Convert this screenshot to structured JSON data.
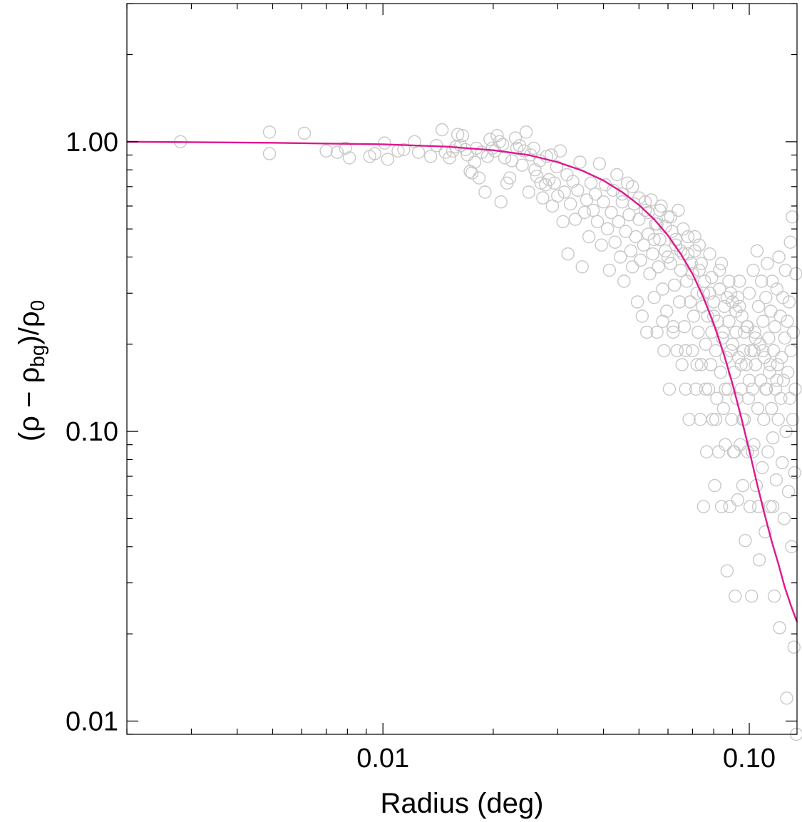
{
  "chart_data": {
    "type": "scatter",
    "xlabel": "Radius (deg)",
    "ylabel": {
      "rho1": "ρ",
      "minus": " − ",
      "rho2": "ρ",
      "sub_bg": "bg",
      "slash": "/",
      "rho3": "ρ",
      "sub_0": "0"
    },
    "x_scale": "log",
    "y_scale": "log",
    "xlim": [
      0.002,
      0.135
    ],
    "ylim": [
      0.009,
      3.0
    ],
    "x_major_ticks": [
      {
        "value": 0.01,
        "label": "0.01"
      },
      {
        "value": 0.1,
        "label": "0.10"
      }
    ],
    "y_major_ticks": [
      {
        "value": 0.01,
        "label": "0.01"
      },
      {
        "value": 0.1,
        "label": "0.10"
      },
      {
        "value": 1.0,
        "label": "1.00"
      }
    ],
    "grid": false,
    "legend": "none",
    "colors": {
      "points": "#c8c8c8",
      "model": "#e0168f",
      "axes": "#000000"
    },
    "model_curve": {
      "type": "line",
      "form": "King profile (1 + (r/rc)^2)^-1 with rc ≈ 0.032 deg, scaled",
      "x": [
        0.002,
        0.005,
        0.01,
        0.015,
        0.02,
        0.025,
        0.03,
        0.035,
        0.04,
        0.045,
        0.05,
        0.055,
        0.06,
        0.065,
        0.07,
        0.075,
        0.08,
        0.085,
        0.09,
        0.095,
        0.1,
        0.105,
        0.11,
        0.115,
        0.12,
        0.125,
        0.13,
        0.135
      ],
      "y": [
        1.0,
        0.992,
        0.98,
        0.962,
        0.935,
        0.9,
        0.85,
        0.795,
        0.735,
        0.67,
        0.605,
        0.54,
        0.475,
        0.41,
        0.35,
        0.29,
        0.235,
        0.187,
        0.146,
        0.112,
        0.086,
        0.066,
        0.052,
        0.042,
        0.035,
        0.029,
        0.025,
        0.022
      ]
    },
    "points": [
      [
        0.0028,
        1.0
      ],
      [
        0.0049,
        1.08
      ],
      [
        0.0049,
        0.91
      ],
      [
        0.0061,
        1.07
      ],
      [
        0.007,
        0.93
      ],
      [
        0.0075,
        0.92
      ],
      [
        0.0079,
        0.95
      ],
      [
        0.0081,
        0.88
      ],
      [
        0.0092,
        0.89
      ],
      [
        0.0095,
        0.91
      ],
      [
        0.0101,
        0.99
      ],
      [
        0.0103,
        0.87
      ],
      [
        0.011,
        0.93
      ],
      [
        0.0114,
        0.94
      ],
      [
        0.0122,
        1.0
      ],
      [
        0.0125,
        0.92
      ],
      [
        0.0135,
        0.89
      ],
      [
        0.014,
        0.97
      ],
      [
        0.0145,
        1.1
      ],
      [
        0.0148,
        0.92
      ],
      [
        0.0152,
        0.88
      ],
      [
        0.0155,
        0.93
      ],
      [
        0.0158,
        0.96
      ],
      [
        0.016,
        1.06
      ],
      [
        0.0163,
        0.97
      ],
      [
        0.0165,
        1.05
      ],
      [
        0.0168,
        0.94
      ],
      [
        0.017,
        0.9
      ],
      [
        0.0173,
        0.79
      ],
      [
        0.0175,
        0.78
      ],
      [
        0.0178,
        0.85
      ],
      [
        0.018,
        0.95
      ],
      [
        0.0183,
        0.75
      ],
      [
        0.0186,
        0.92
      ],
      [
        0.019,
        0.67
      ],
      [
        0.0193,
        0.89
      ],
      [
        0.0196,
        1.02
      ],
      [
        0.0199,
        0.95
      ],
      [
        0.0202,
        0.93
      ],
      [
        0.0205,
        1.05
      ],
      [
        0.0208,
        1.0
      ],
      [
        0.021,
        0.62
      ],
      [
        0.0212,
        0.98
      ],
      [
        0.0215,
        0.88
      ],
      [
        0.0218,
        0.72
      ],
      [
        0.0222,
        0.75
      ],
      [
        0.0225,
        0.86
      ],
      [
        0.023,
        1.03
      ],
      [
        0.0232,
        0.95
      ],
      [
        0.0236,
        0.97
      ],
      [
        0.024,
        0.83
      ],
      [
        0.0243,
        0.93
      ],
      [
        0.0246,
        1.08
      ],
      [
        0.025,
        0.67
      ],
      [
        0.0253,
        0.9
      ],
      [
        0.0258,
        0.95
      ],
      [
        0.026,
        0.8
      ],
      [
        0.0263,
        0.76
      ],
      [
        0.0268,
        0.86
      ],
      [
        0.027,
        0.72
      ],
      [
        0.0273,
        0.64
      ],
      [
        0.0278,
        0.71
      ],
      [
        0.028,
        0.89
      ],
      [
        0.0284,
        0.74
      ],
      [
        0.0288,
        0.9
      ],
      [
        0.029,
        0.6
      ],
      [
        0.0294,
        0.72
      ],
      [
        0.0298,
        0.82
      ],
      [
        0.03,
        0.65
      ],
      [
        0.0305,
        0.93
      ],
      [
        0.031,
        0.53
      ],
      [
        0.0313,
        0.67
      ],
      [
        0.0318,
        0.77
      ],
      [
        0.032,
        0.41
      ],
      [
        0.0325,
        0.61
      ],
      [
        0.033,
        0.73
      ],
      [
        0.0335,
        0.54
      ],
      [
        0.034,
        0.68
      ],
      [
        0.0345,
        0.85
      ],
      [
        0.035,
        0.37
      ],
      [
        0.0355,
        0.57
      ],
      [
        0.036,
        0.63
      ],
      [
        0.0365,
        0.47
      ],
      [
        0.037,
        0.72
      ],
      [
        0.0375,
        0.58
      ],
      [
        0.038,
        0.66
      ],
      [
        0.0385,
        0.53
      ],
      [
        0.039,
        0.84
      ],
      [
        0.0395,
        0.44
      ],
      [
        0.04,
        0.62
      ],
      [
        0.0405,
        0.71
      ],
      [
        0.041,
        0.5
      ],
      [
        0.0415,
        0.36
      ],
      [
        0.042,
        0.57
      ],
      [
        0.0425,
        0.68
      ],
      [
        0.043,
        0.45
      ],
      [
        0.0435,
        0.77
      ],
      [
        0.044,
        0.53
      ],
      [
        0.0445,
        0.4
      ],
      [
        0.045,
        0.62
      ],
      [
        0.0455,
        0.33
      ],
      [
        0.046,
        0.49
      ],
      [
        0.0465,
        0.72
      ],
      [
        0.047,
        0.56
      ],
      [
        0.0475,
        0.42
      ],
      [
        0.048,
        0.37
      ],
      [
        0.0485,
        0.61
      ],
      [
        0.049,
        0.47
      ],
      [
        0.0495,
        0.28
      ],
      [
        0.05,
        0.54
      ],
      [
        0.0505,
        0.39
      ],
      [
        0.051,
        0.25
      ],
      [
        0.0515,
        0.44
      ],
      [
        0.052,
        0.58
      ],
      [
        0.0525,
        0.22
      ],
      [
        0.053,
        0.48
      ],
      [
        0.0535,
        0.35
      ],
      [
        0.054,
        0.63
      ],
      [
        0.0545,
        0.41
      ],
      [
        0.055,
        0.29
      ],
      [
        0.0555,
        0.52
      ],
      [
        0.056,
        0.22
      ],
      [
        0.0565,
        0.37
      ],
      [
        0.057,
        0.46
      ],
      [
        0.0575,
        0.6
      ],
      [
        0.058,
        0.31
      ],
      [
        0.0585,
        0.19
      ],
      [
        0.059,
        0.42
      ],
      [
        0.0595,
        0.26
      ],
      [
        0.06,
        0.55
      ],
      [
        0.0605,
        0.14
      ],
      [
        0.061,
        0.38
      ],
      [
        0.0615,
        0.49
      ],
      [
        0.062,
        0.23
      ],
      [
        0.0625,
        0.32
      ],
      [
        0.063,
        0.44
      ],
      [
        0.0635,
        0.19
      ],
      [
        0.064,
        0.58
      ],
      [
        0.0645,
        0.28
      ],
      [
        0.065,
        0.36
      ],
      [
        0.0655,
        0.17
      ],
      [
        0.066,
        0.41
      ],
      [
        0.0665,
        0.23
      ],
      [
        0.067,
        0.14
      ],
      [
        0.0675,
        0.33
      ],
      [
        0.068,
        0.47
      ],
      [
        0.0685,
        0.11
      ],
      [
        0.069,
        0.28
      ],
      [
        0.0695,
        0.38
      ],
      [
        0.07,
        0.19
      ],
      [
        0.0705,
        0.25
      ],
      [
        0.071,
        0.42
      ],
      [
        0.0715,
        0.14
      ],
      [
        0.072,
        0.3
      ],
      [
        0.0725,
        0.22
      ],
      [
        0.073,
        0.36
      ],
      [
        0.0735,
        0.11
      ],
      [
        0.074,
        0.17
      ],
      [
        0.0745,
        0.27
      ],
      [
        0.075,
        0.055
      ],
      [
        0.0755,
        0.33
      ],
      [
        0.076,
        0.2
      ],
      [
        0.0765,
        0.085
      ],
      [
        0.077,
        0.25
      ],
      [
        0.0775,
        0.14
      ],
      [
        0.078,
        0.3
      ],
      [
        0.0785,
        0.17
      ],
      [
        0.079,
        0.22
      ],
      [
        0.0795,
        0.11
      ],
      [
        0.08,
        0.28
      ],
      [
        0.0805,
        0.065
      ],
      [
        0.081,
        0.19
      ],
      [
        0.0815,
        0.13
      ],
      [
        0.082,
        0.24
      ],
      [
        0.0825,
        0.085
      ],
      [
        0.083,
        0.31
      ],
      [
        0.0835,
        0.16
      ],
      [
        0.084,
        0.055
      ],
      [
        0.0845,
        0.21
      ],
      [
        0.085,
        0.12
      ],
      [
        0.0855,
        0.27
      ],
      [
        0.086,
        0.09
      ],
      [
        0.0865,
        0.18
      ],
      [
        0.087,
        0.033
      ],
      [
        0.0875,
        0.14
      ],
      [
        0.088,
        0.24
      ],
      [
        0.0885,
        0.055
      ],
      [
        0.089,
        0.19
      ],
      [
        0.0895,
        0.11
      ],
      [
        0.09,
        0.28
      ],
      [
        0.0905,
        0.085
      ],
      [
        0.091,
        0.16
      ],
      [
        0.0915,
        0.027
      ],
      [
        0.092,
        0.22
      ],
      [
        0.0925,
        0.13
      ],
      [
        0.093,
        0.058
      ],
      [
        0.0935,
        0.18
      ],
      [
        0.094,
        0.33
      ],
      [
        0.0945,
        0.09
      ],
      [
        0.095,
        0.14
      ],
      [
        0.0955,
        0.25
      ],
      [
        0.096,
        0.065
      ],
      [
        0.0965,
        0.19
      ],
      [
        0.097,
        0.11
      ],
      [
        0.0975,
        0.042
      ],
      [
        0.098,
        0.17
      ],
      [
        0.0985,
        0.23
      ],
      [
        0.099,
        0.085
      ],
      [
        0.0995,
        0.13
      ],
      [
        0.1,
        0.3
      ],
      [
        0.1005,
        0.055
      ],
      [
        0.101,
        0.19
      ],
      [
        0.1015,
        0.027
      ],
      [
        0.102,
        0.14
      ],
      [
        0.1025,
        0.36
      ],
      [
        0.103,
        0.09
      ],
      [
        0.1035,
        0.22
      ],
      [
        0.104,
        0.17
      ],
      [
        0.1045,
        0.065
      ],
      [
        0.105,
        0.42
      ],
      [
        0.1055,
        0.12
      ],
      [
        0.106,
        0.27
      ],
      [
        0.1065,
        0.036
      ],
      [
        0.107,
        0.2
      ],
      [
        0.1075,
        0.15
      ],
      [
        0.108,
        0.33
      ],
      [
        0.1085,
        0.075
      ],
      [
        0.109,
        0.24
      ],
      [
        0.1095,
        0.11
      ],
      [
        0.11,
        0.18
      ],
      [
        0.1105,
        0.045
      ],
      [
        0.111,
        0.29
      ],
      [
        0.1115,
        0.14
      ],
      [
        0.112,
        0.38
      ],
      [
        0.1125,
        0.085
      ],
      [
        0.113,
        0.21
      ],
      [
        0.1135,
        0.16
      ],
      [
        0.114,
        0.055
      ],
      [
        0.1145,
        0.26
      ],
      [
        0.115,
        0.12
      ],
      [
        0.1155,
        0.33
      ],
      [
        0.116,
        0.095
      ],
      [
        0.1165,
        0.19
      ],
      [
        0.117,
        0.027
      ],
      [
        0.1175,
        0.23
      ],
      [
        0.118,
        0.14
      ],
      [
        0.1185,
        0.068
      ],
      [
        0.119,
        0.31
      ],
      [
        0.1195,
        0.17
      ],
      [
        0.12,
        0.11
      ],
      [
        0.1205,
        0.4
      ],
      [
        0.121,
        0.021
      ],
      [
        0.1215,
        0.25
      ],
      [
        0.122,
        0.13
      ],
      [
        0.1225,
        0.18
      ],
      [
        0.123,
        0.078
      ],
      [
        0.1235,
        0.29
      ],
      [
        0.124,
        0.15
      ],
      [
        0.1245,
        0.05
      ],
      [
        0.125,
        0.21
      ],
      [
        0.1255,
        0.36
      ],
      [
        0.126,
        0.1
      ],
      [
        0.1265,
        0.012
      ],
      [
        0.127,
        0.24
      ],
      [
        0.1275,
        0.16
      ],
      [
        0.128,
        0.062
      ],
      [
        0.1285,
        0.28
      ],
      [
        0.129,
        0.13
      ],
      [
        0.1295,
        0.45
      ],
      [
        0.13,
        0.19
      ],
      [
        0.1305,
        0.04
      ],
      [
        0.131,
        0.55
      ],
      [
        0.1315,
        0.11
      ],
      [
        0.132,
        0.22
      ],
      [
        0.1325,
        0.018
      ],
      [
        0.133,
        0.072
      ],
      [
        0.1335,
        0.14
      ],
      [
        0.134,
        0.35
      ],
      [
        0.1345,
        0.009
      ],
      [
        0.055,
        0.46
      ],
      [
        0.06,
        0.4
      ],
      [
        0.065,
        0.42
      ],
      [
        0.07,
        0.35
      ],
      [
        0.075,
        0.3
      ],
      [
        0.08,
        0.25
      ],
      [
        0.085,
        0.22
      ],
      [
        0.09,
        0.2
      ],
      [
        0.095,
        0.17
      ],
      [
        0.1,
        0.15
      ],
      [
        0.078,
        0.41
      ],
      [
        0.083,
        0.36
      ],
      [
        0.088,
        0.33
      ],
      [
        0.093,
        0.29
      ],
      [
        0.058,
        0.24
      ],
      [
        0.062,
        0.22
      ],
      [
        0.067,
        0.19
      ],
      [
        0.072,
        0.17
      ],
      [
        0.076,
        0.14
      ],
      [
        0.081,
        0.11
      ],
      [
        0.086,
        0.14
      ],
      [
        0.091,
        0.085
      ],
      [
        0.096,
        0.11
      ],
      [
        0.102,
        0.085
      ],
      [
        0.106,
        0.055
      ],
      [
        0.111,
        0.14
      ],
      [
        0.116,
        0.055
      ],
      [
        0.052,
        0.62
      ],
      [
        0.057,
        0.58
      ],
      [
        0.061,
        0.55
      ],
      [
        0.066,
        0.5
      ],
      [
        0.071,
        0.47
      ],
      [
        0.073,
        0.44
      ],
      [
        0.084,
        0.38
      ],
      [
        0.089,
        0.3
      ],
      [
        0.094,
        0.27
      ],
      [
        0.099,
        0.23
      ],
      [
        0.104,
        0.21
      ],
      [
        0.109,
        0.19
      ],
      [
        0.114,
        0.17
      ],
      [
        0.119,
        0.15
      ],
      [
        0.045,
        0.66
      ],
      [
        0.048,
        0.7
      ],
      [
        0.05,
        0.64
      ],
      [
        0.053,
        0.57
      ],
      [
        0.056,
        0.52
      ],
      [
        0.059,
        0.51
      ],
      [
        0.063,
        0.46
      ],
      [
        0.068,
        0.41
      ],
      [
        0.074,
        0.38
      ],
      [
        0.079,
        0.34
      ],
      [
        0.087,
        0.29
      ],
      [
        0.092,
        0.26
      ],
      [
        0.097,
        0.22
      ],
      [
        0.103,
        0.19
      ]
    ]
  }
}
